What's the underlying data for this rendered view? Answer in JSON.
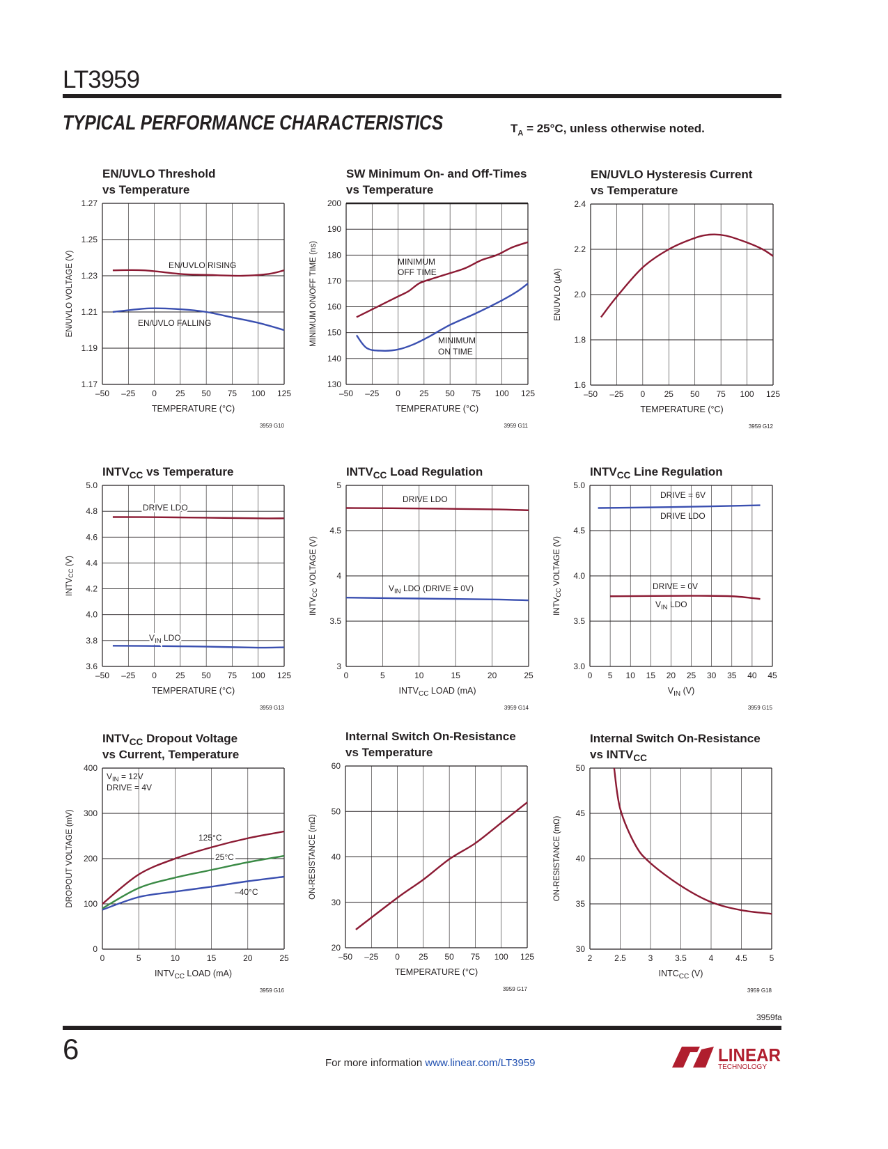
{
  "header": {
    "part_number": "LT3959",
    "section_title": "Typical Performance Characteristics",
    "conditions_prefix": "T",
    "conditions_sub": "A",
    "conditions_rest": " = 25°C, unless otherwise noted."
  },
  "footer": {
    "page_number": "6",
    "doc_code": "3959fa",
    "info_text": "For more information ",
    "link_text": "www.linear.com/LT3959",
    "logo_text": "LINEAR",
    "logo_subtext": "TECHNOLOGY"
  },
  "colors": {
    "red": "#8b1a33",
    "blue": "#3a4fb0",
    "green": "#3a8a45",
    "grid": "#231f20"
  },
  "chart_data": [
    {
      "type": "line",
      "title": [
        [
          {
            "t": "EN/UVLO Threshold"
          }
        ],
        [
          {
            "t": "vs Temperature"
          }
        ]
      ],
      "xlabel": [
        {
          "t": "TEMPERATURE (°C)"
        }
      ],
      "ylabel": [
        {
          "t": "EN/UVLO VOLTAGE (V)"
        }
      ],
      "xlim": [
        -50,
        125
      ],
      "ylim": [
        1.17,
        1.27
      ],
      "xticks": [
        "–50",
        "–25",
        "0",
        "25",
        "50",
        "75",
        "100",
        "125"
      ],
      "yticks": [
        "1.17",
        "1.19",
        "1.21",
        "1.23",
        "1.25",
        "1.27"
      ],
      "series": [
        {
          "name": "EN/UVLO RISING",
          "color": "red",
          "points": [
            [
              -40,
              1.233
            ],
            [
              -10,
              1.233
            ],
            [
              25,
              1.231
            ],
            [
              50,
              1.2305
            ],
            [
              85,
              1.23
            ],
            [
              110,
              1.231
            ],
            [
              125,
              1.233
            ]
          ]
        },
        {
          "name": "EN/UVLO FALLING",
          "color": "blue",
          "points": [
            [
              -40,
              1.21
            ],
            [
              -5,
              1.212
            ],
            [
              25,
              1.2115
            ],
            [
              50,
              1.21
            ],
            [
              75,
              1.207
            ],
            [
              100,
              1.204
            ],
            [
              125,
              1.2
            ]
          ]
        }
      ],
      "annotations": [
        [
          {
            "t": "EN/UVLO RISING"
          }
        ],
        [
          {
            "t": "EN/UVLO FALLING"
          }
        ]
      ],
      "code": "3959 G10"
    },
    {
      "type": "line",
      "title": [
        [
          {
            "t": "SW Minimum On- and Off-Times"
          }
        ],
        [
          {
            "t": "vs Temperature"
          }
        ]
      ],
      "xlabel": [
        {
          "t": "TEMPERATURE (°C)"
        }
      ],
      "ylabel": [
        {
          "t": "MINIMUM ON/OFF TIME (ns)"
        }
      ],
      "xlim": [
        -50,
        125
      ],
      "ylim": [
        130,
        200
      ],
      "xticks": [
        "–50",
        "–25",
        "0",
        "25",
        "50",
        "75",
        "100",
        "125"
      ],
      "yticks": [
        "130",
        "140",
        "150",
        "160",
        "170",
        "180",
        "190",
        "200"
      ],
      "series": [
        {
          "name": "MINIMUM OFF TIME",
          "color": "red",
          "points": [
            [
              -40,
              156
            ],
            [
              -25,
              159
            ],
            [
              0,
              164
            ],
            [
              10,
              166
            ],
            [
              20,
              169
            ],
            [
              30,
              170.5
            ],
            [
              50,
              173
            ],
            [
              65,
              175
            ],
            [
              80,
              178
            ],
            [
              95,
              180
            ],
            [
              110,
              183
            ],
            [
              125,
              185
            ]
          ]
        },
        {
          "name": "MINIMUM ON TIME",
          "color": "blue",
          "points": [
            [
              -40,
              149
            ],
            [
              -30,
              144
            ],
            [
              -15,
              143
            ],
            [
              0,
              143.5
            ],
            [
              15,
              145.5
            ],
            [
              30,
              148.5
            ],
            [
              50,
              153
            ],
            [
              75,
              157.5
            ],
            [
              100,
              162.5
            ],
            [
              115,
              166
            ],
            [
              125,
              169
            ]
          ]
        }
      ],
      "annotations": [
        [
          {
            "t": "MINIMUM"
          }
        ],
        [
          {
            "t": "OFF TIME"
          }
        ],
        [
          {
            "t": "MINIMUM"
          }
        ],
        [
          {
            "t": "ON TIME"
          }
        ]
      ],
      "code": "3959 G11"
    },
    {
      "type": "line",
      "title": [
        [
          {
            "t": "EN/UVLO Hysteresis Current"
          }
        ],
        [
          {
            "t": "vs Temperature"
          }
        ]
      ],
      "xlabel": [
        {
          "t": "TEMPERATURE (°C)"
        }
      ],
      "ylabel": [
        {
          "t": "EN/UVLO (µA)"
        }
      ],
      "xlim": [
        -50,
        125
      ],
      "ylim": [
        1.6,
        2.4
      ],
      "xticks": [
        "–50",
        "–25",
        "0",
        "25",
        "50",
        "75",
        "100",
        "125"
      ],
      "yticks": [
        "1.6",
        "1.8",
        "2.0",
        "2.2",
        "2.4"
      ],
      "series": [
        {
          "name": "EN/UVLO hysteresis current",
          "color": "red",
          "points": [
            [
              -40,
              1.9
            ],
            [
              -25,
              1.99
            ],
            [
              0,
              2.12
            ],
            [
              25,
              2.2
            ],
            [
              50,
              2.25
            ],
            [
              65,
              2.265
            ],
            [
              80,
              2.26
            ],
            [
              100,
              2.23
            ],
            [
              115,
              2.2
            ],
            [
              125,
              2.17
            ]
          ]
        }
      ],
      "annotations": [],
      "code": "3959 G12"
    },
    {
      "type": "line",
      "title": [
        [
          {
            "t": "INTV"
          },
          {
            "t": "CC",
            "sub": true
          },
          {
            "t": " vs Temperature"
          }
        ]
      ],
      "xlabel": [
        {
          "t": "TEMPERATURE (°C)"
        }
      ],
      "ylabel": [
        {
          "t": "INTV"
        },
        {
          "t": "CC",
          "sub": true
        },
        {
          "t": " (V)"
        }
      ],
      "xlim": [
        -50,
        125
      ],
      "ylim": [
        3.6,
        5.0
      ],
      "xticks": [
        "–50",
        "–25",
        "0",
        "25",
        "50",
        "75",
        "100",
        "125"
      ],
      "yticks": [
        "3.6",
        "3.8",
        "4.0",
        "4.2",
        "4.4",
        "4.6",
        "4.8",
        "5.0"
      ],
      "series": [
        {
          "name": "DRIVE LDO",
          "color": "red",
          "points": [
            [
              -40,
              4.755
            ],
            [
              0,
              4.754
            ],
            [
              50,
              4.75
            ],
            [
              100,
              4.745
            ],
            [
              125,
              4.745
            ]
          ]
        },
        {
          "name": "VIN LDO",
          "color": "blue",
          "points": [
            [
              -40,
              3.76
            ],
            [
              0,
              3.758
            ],
            [
              50,
              3.753
            ],
            [
              100,
              3.745
            ],
            [
              125,
              3.748
            ]
          ]
        }
      ],
      "annotations": [
        [
          {
            "t": "DRIVE LDO"
          }
        ],
        [
          {
            "t": "V"
          },
          {
            "t": "IN",
            "sub": true
          },
          {
            "t": " LDO"
          }
        ]
      ],
      "code": "3959 G13"
    },
    {
      "type": "line",
      "title": [
        [
          {
            "t": "INTV"
          },
          {
            "t": "CC",
            "sub": true
          },
          {
            "t": " Load Regulation"
          }
        ]
      ],
      "xlabel": [
        {
          "t": "INTV"
        },
        {
          "t": "CC",
          "sub": true
        },
        {
          "t": " LOAD (mA)"
        }
      ],
      "ylabel": [
        {
          "t": "INTV"
        },
        {
          "t": "CC",
          "sub": true
        },
        {
          "t": " VOLTAGE (V)"
        }
      ],
      "xlim": [
        0,
        25
      ],
      "ylim": [
        3,
        5
      ],
      "xticks": [
        "0",
        "5",
        "10",
        "15",
        "20",
        "25"
      ],
      "yticks": [
        "3",
        "3.5",
        "4",
        "4.5",
        "5"
      ],
      "series": [
        {
          "name": "DRIVE LDO",
          "color": "red",
          "points": [
            [
              0,
              4.75
            ],
            [
              10,
              4.745
            ],
            [
              20,
              4.735
            ],
            [
              25,
              4.725
            ]
          ]
        },
        {
          "name": "VIN LDO (DRIVE = 0V)",
          "color": "blue",
          "points": [
            [
              0,
              3.76
            ],
            [
              10,
              3.75
            ],
            [
              20,
              3.74
            ],
            [
              25,
              3.73
            ]
          ]
        }
      ],
      "annotations": [
        [
          {
            "t": "DRIVE LDO"
          }
        ],
        [
          {
            "t": "V"
          },
          {
            "t": "IN",
            "sub": true
          },
          {
            "t": " LDO (DRIVE = 0V)"
          }
        ]
      ],
      "code": "3959 G14"
    },
    {
      "type": "line",
      "title": [
        [
          {
            "t": "INTV"
          },
          {
            "t": "CC",
            "sub": true
          },
          {
            "t": " Line Regulation"
          }
        ]
      ],
      "xlabel": [
        {
          "t": "V"
        },
        {
          "t": "IN",
          "sub": true
        },
        {
          "t": " (V)"
        }
      ],
      "ylabel": [
        {
          "t": "INTV"
        },
        {
          "t": "CC",
          "sub": true
        },
        {
          "t": " VOLTAGE (V)"
        }
      ],
      "xlim": [
        0,
        45
      ],
      "ylim": [
        3,
        5
      ],
      "xticks": [
        "0",
        "5",
        "10",
        "15",
        "20",
        "25",
        "30",
        "35",
        "40",
        "45"
      ],
      "yticks": [
        "3.0",
        "3.5",
        "4.0",
        "4.5",
        "5.0"
      ],
      "series": [
        {
          "name": "DRIVE LDO (DRIVE = 6V)",
          "color": "blue",
          "points": [
            [
              2,
              4.75
            ],
            [
              20,
              4.76
            ],
            [
              42,
              4.78
            ]
          ]
        },
        {
          "name": "VIN LDO (DRIVE = 0V)",
          "color": "red",
          "points": [
            [
              5,
              3.775
            ],
            [
              25,
              3.78
            ],
            [
              35,
              3.775
            ],
            [
              42,
              3.745
            ]
          ]
        }
      ],
      "annotations": [
        [
          {
            "t": "DRIVE = 6V"
          }
        ],
        [
          {
            "t": "DRIVE LDO"
          }
        ],
        [
          {
            "t": "DRIVE = 0V"
          }
        ],
        [
          {
            "t": "V"
          },
          {
            "t": "IN",
            "sub": true
          },
          {
            "t": " LDO"
          }
        ]
      ],
      "code": "3959 G15"
    },
    {
      "type": "line",
      "title": [
        [
          {
            "t": "INTV"
          },
          {
            "t": "CC",
            "sub": true
          },
          {
            "t": " Dropout Voltage"
          }
        ],
        [
          {
            "t": "vs Current, Temperature"
          }
        ]
      ],
      "xlabel": [
        {
          "t": "INTV"
        },
        {
          "t": "CC",
          "sub": true
        },
        {
          "t": " LOAD (mA)"
        }
      ],
      "ylabel": [
        {
          "t": "DROPOUT VOLTAGE (mV)"
        }
      ],
      "xlim": [
        0,
        25
      ],
      "ylim": [
        0,
        400
      ],
      "xticks": [
        "0",
        "5",
        "10",
        "15",
        "20",
        "25"
      ],
      "yticks": [
        "0",
        "100",
        "200",
        "300",
        "400"
      ],
      "series": [
        {
          "name": "125°C",
          "color": "red",
          "points": [
            [
              0,
              100
            ],
            [
              5,
              165
            ],
            [
              10,
              200
            ],
            [
              15,
              225
            ],
            [
              20,
              245
            ],
            [
              25,
              260
            ]
          ]
        },
        {
          "name": "25°C",
          "color": "green",
          "points": [
            [
              0,
              90
            ],
            [
              5,
              135
            ],
            [
              10,
              158
            ],
            [
              15,
              175
            ],
            [
              20,
              192
            ],
            [
              25,
              206
            ]
          ]
        },
        {
          "name": "–40°C",
          "color": "blue",
          "points": [
            [
              0,
              87
            ],
            [
              5,
              115
            ],
            [
              10,
              127
            ],
            [
              15,
              138
            ],
            [
              20,
              150
            ],
            [
              25,
              160
            ]
          ]
        }
      ],
      "annotations": [
        [
          {
            "t": "V"
          },
          {
            "t": "IN",
            "sub": true
          },
          {
            "t": "  = 12V"
          }
        ],
        [
          {
            "t": "DRIVE = 4V"
          }
        ],
        [
          {
            "t": "125°C"
          }
        ],
        [
          {
            "t": "25°C"
          }
        ],
        [
          {
            "t": "–40°C"
          }
        ]
      ],
      "code": "3959 G16"
    },
    {
      "type": "line",
      "title": [
        [
          {
            "t": "Internal Switch On-Resistance"
          }
        ],
        [
          {
            "t": "vs Temperature"
          }
        ]
      ],
      "xlabel": [
        {
          "t": "TEMPERATURE (°C)"
        }
      ],
      "ylabel": [
        {
          "t": "ON-RESISTANCE (mΩ)"
        }
      ],
      "xlim": [
        -50,
        125
      ],
      "ylim": [
        20,
        60
      ],
      "xticks": [
        "–50",
        "–25",
        "0",
        "25",
        "50",
        "75",
        "100",
        "125"
      ],
      "yticks": [
        "20",
        "30",
        "40",
        "50",
        "60"
      ],
      "series": [
        {
          "name": "On-resistance",
          "color": "red",
          "points": [
            [
              -40,
              24
            ],
            [
              0,
              31
            ],
            [
              25,
              35
            ],
            [
              50,
              39.5
            ],
            [
              75,
              43
            ],
            [
              100,
              47.5
            ],
            [
              125,
              52
            ]
          ]
        }
      ],
      "annotations": [],
      "code": "3959 G17"
    },
    {
      "type": "line",
      "title": [
        [
          {
            "t": "Internal Switch On-Resistance"
          }
        ],
        [
          {
            "t": "vs INTV"
          },
          {
            "t": "CC",
            "sub": true
          }
        ]
      ],
      "xlabel": [
        {
          "t": "INTC"
        },
        {
          "t": "CC",
          "sub": true
        },
        {
          "t": " (V)"
        }
      ],
      "ylabel": [
        {
          "t": "ON-RESISTANCE (mΩ)"
        }
      ],
      "xlim": [
        2,
        5
      ],
      "ylim": [
        30,
        50
      ],
      "xticks": [
        "2",
        "2.5",
        "3",
        "3.5",
        "4",
        "4.5",
        "5"
      ],
      "yticks": [
        "30",
        "35",
        "40",
        "45",
        "50"
      ],
      "series": [
        {
          "name": "On-resistance",
          "color": "red",
          "points": [
            [
              2.4,
              50
            ],
            [
              2.5,
              45.5
            ],
            [
              2.75,
              41.5
            ],
            [
              3,
              39.5
            ],
            [
              3.5,
              37
            ],
            [
              4,
              35.2
            ],
            [
              4.5,
              34.3
            ],
            [
              5,
              33.9
            ]
          ]
        }
      ],
      "annotations": [],
      "code": "3959 G18"
    }
  ]
}
